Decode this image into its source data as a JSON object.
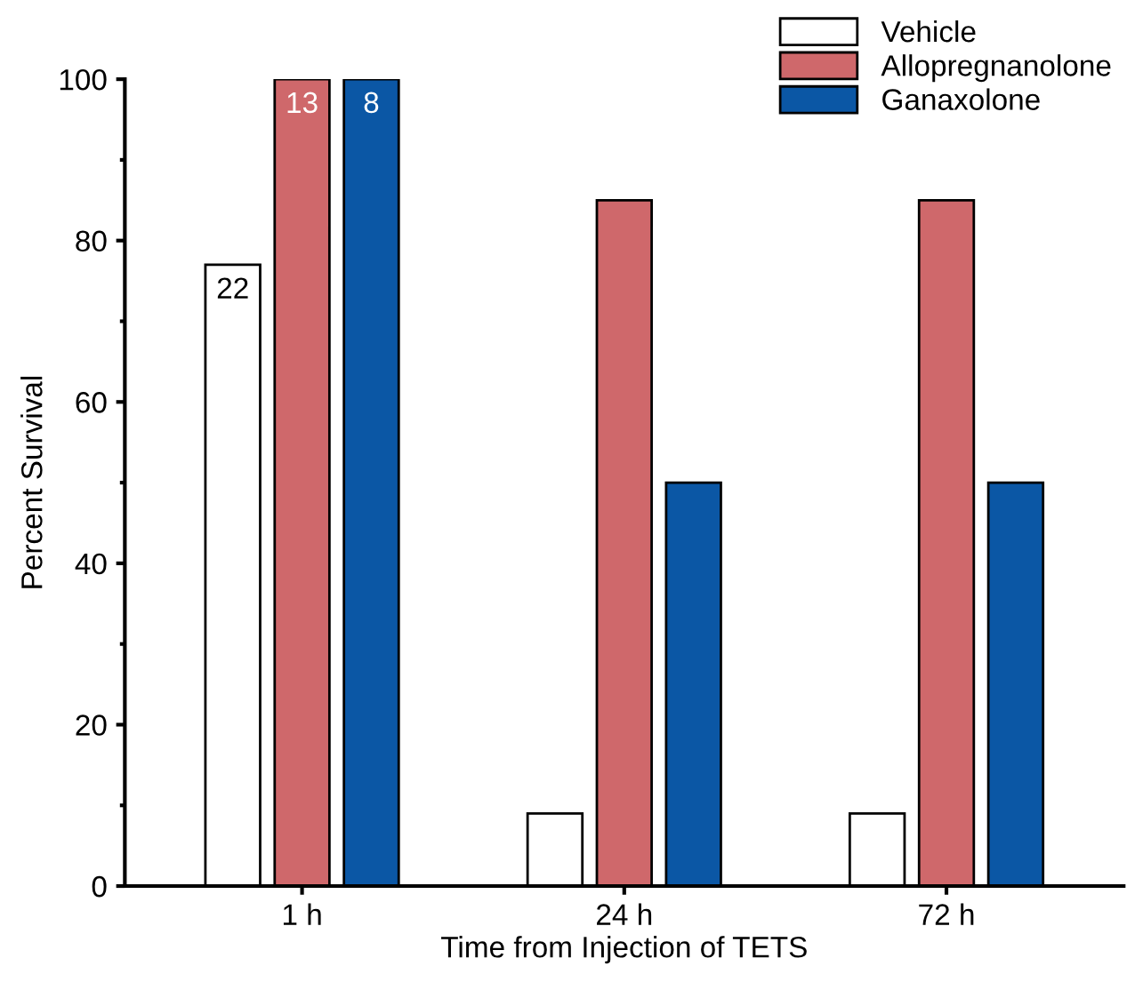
{
  "chart_data": {
    "type": "bar",
    "xlabel": "Time from Injection of TETS",
    "ylabel": "Percent Survival",
    "categories": [
      "1 h",
      "24 h",
      "72 h"
    ],
    "series": [
      {
        "name": "Vehicle",
        "color": "#ffffff",
        "values": [
          77,
          9,
          9
        ]
      },
      {
        "name": "Allopregnanolone",
        "color": "#cf686b",
        "values": [
          100,
          85,
          85
        ]
      },
      {
        "name": "Ganaxolone",
        "color": "#0b57a5",
        "values": [
          100,
          50,
          50
        ]
      }
    ],
    "annotations": [
      "22",
      "13",
      "8"
    ],
    "ylim": [
      0,
      100
    ],
    "yticks": [
      0,
      20,
      40,
      60,
      80,
      100
    ],
    "grid": false,
    "legend": "top right"
  }
}
